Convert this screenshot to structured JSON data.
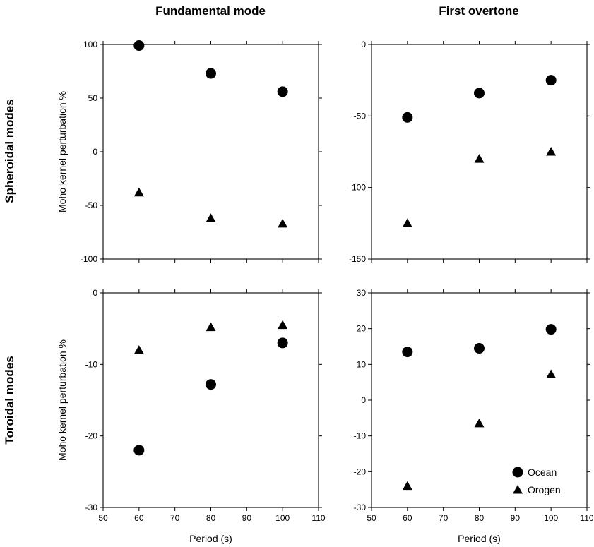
{
  "figure": {
    "col_titles": [
      "Fundamental mode",
      "First overtone"
    ],
    "row_titles": [
      "Spheroidal modes",
      "Toroidal modes"
    ]
  },
  "chart_data": [
    {
      "type": "scatter",
      "panel": "spheroidal-fundamental",
      "xlabel": "",
      "ylabel": "Moho kernel perturbation %",
      "xlim": [
        50,
        110
      ],
      "ylim": [
        -100,
        100
      ],
      "yticks": [
        -100,
        -50,
        0,
        50,
        100
      ],
      "show_x_tick_labels": false,
      "grid": false,
      "legend": null,
      "series": [
        {
          "name": "Ocean",
          "marker": "circle",
          "x": [
            60,
            80,
            100
          ],
          "y": [
            99,
            73,
            56
          ]
        },
        {
          "name": "Orogen",
          "marker": "triangle",
          "x": [
            60,
            80,
            100
          ],
          "y": [
            -38,
            -62,
            -67
          ]
        }
      ]
    },
    {
      "type": "scatter",
      "panel": "spheroidal-overtone",
      "xlabel": "",
      "ylabel": "",
      "xlim": [
        50,
        110
      ],
      "ylim": [
        -150,
        0
      ],
      "yticks": [
        -150,
        -100,
        -50,
        0
      ],
      "show_x_tick_labels": false,
      "grid": false,
      "legend": null,
      "series": [
        {
          "name": "Ocean",
          "marker": "circle",
          "x": [
            60,
            80,
            100
          ],
          "y": [
            -51,
            -34,
            -25
          ]
        },
        {
          "name": "Orogen",
          "marker": "triangle",
          "x": [
            60,
            80,
            100
          ],
          "y": [
            -125,
            -80,
            -75
          ]
        }
      ]
    },
    {
      "type": "scatter",
      "panel": "toroidal-fundamental",
      "xlabel": "Period (s)",
      "ylabel": "Moho kernel perturbation %",
      "xlim": [
        50,
        110
      ],
      "ylim": [
        -30,
        0
      ],
      "xticks": [
        50,
        60,
        70,
        80,
        90,
        100,
        110
      ],
      "yticks": [
        -30,
        -20,
        -10,
        0
      ],
      "show_x_tick_labels": true,
      "grid": false,
      "legend": null,
      "series": [
        {
          "name": "Ocean",
          "marker": "circle",
          "x": [
            60,
            80,
            100
          ],
          "y": [
            -22,
            -12.8,
            -7
          ]
        },
        {
          "name": "Orogen",
          "marker": "triangle",
          "x": [
            60,
            80,
            100
          ],
          "y": [
            -8,
            -4.8,
            -4.5
          ]
        }
      ]
    },
    {
      "type": "scatter",
      "panel": "toroidal-overtone",
      "xlabel": "Period (s)",
      "ylabel": "",
      "xlim": [
        50,
        110
      ],
      "ylim": [
        -30,
        30
      ],
      "xticks": [
        50,
        60,
        70,
        80,
        90,
        100,
        110
      ],
      "yticks": [
        -30,
        -20,
        -10,
        0,
        10,
        20,
        30
      ],
      "show_x_tick_labels": true,
      "grid": false,
      "legend": "bottom-right",
      "series": [
        {
          "name": "Ocean",
          "marker": "circle",
          "x": [
            60,
            80,
            100
          ],
          "y": [
            13.5,
            14.5,
            19.8
          ]
        },
        {
          "name": "Orogen",
          "marker": "triangle",
          "x": [
            60,
            80,
            100
          ],
          "y": [
            -24,
            -6.5,
            7.2
          ]
        }
      ]
    }
  ]
}
